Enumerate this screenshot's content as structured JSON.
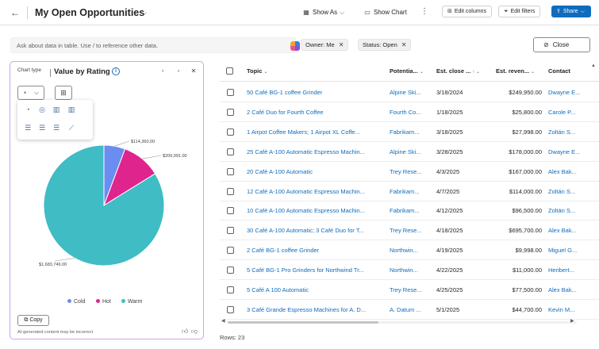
{
  "header": {
    "title": "My Open Opportunities",
    "show_as": "Show As",
    "show_chart": "Show Chart",
    "edit_columns": "Edit columns",
    "edit_filters": "Edit filters",
    "share": "Share"
  },
  "filterbar": {
    "ask_placeholder": "Ask about data in table. Use / to reference other data.",
    "chips": [
      "Owner: Me",
      "Status: Open"
    ],
    "close_label": "Close"
  },
  "chart_panel": {
    "tooltip": "Chart type",
    "title": "Value by Rating",
    "copy_label": "Copy",
    "ai_note": "AI-generated content may be incorrect",
    "accent_color": "#c8a6ef"
  },
  "chart_data": {
    "type": "pie",
    "title": "Value by Rating",
    "categories": [
      "Cold",
      "Hot",
      "Warm"
    ],
    "values": [
      114360,
      209991,
      1683746
    ],
    "value_labels": [
      "$114,360.00",
      "$209,991.00",
      "$1,683,746.00"
    ],
    "colors": [
      "#6b8cf0",
      "#e0248e",
      "#3fbcc4"
    ],
    "legend": "bottom"
  },
  "table": {
    "columns": [
      "Topic",
      "Potentia...",
      "Est. close ...",
      "Est. reven...",
      "Contact"
    ],
    "sort_indicators": [
      "⌄",
      "⌄",
      "↑ ⌄",
      "⌄",
      ""
    ],
    "rows": [
      [
        "50 Café BG-1 coffee Grinder",
        "Alpine Ski...",
        "3/18/2024",
        "$249,950.00",
        "Dwayne E..."
      ],
      [
        "2 Café Duo for Fourth Coffee",
        "Fourth Co...",
        "1/18/2025",
        "$25,800.00",
        "Carole P..."
      ],
      [
        "1 Airpot Coffee Makers; 1 Airpot XL Coffe...",
        "Fabrikam...",
        "3/18/2025",
        "$27,998.00",
        "Zoltán S..."
      ],
      [
        "25 Café A-100 Automatic Espresso Machin...",
        "Alpine Ski...",
        "3/28/2025",
        "$178,000.00",
        "Dwayne E..."
      ],
      [
        "20 Café A-100 Automatic",
        "Trey Rese...",
        "4/3/2025",
        "$167,000.00",
        "Alex Bak..."
      ],
      [
        "12 Café A-100 Automatic Espresso Machin...",
        "Fabrikam...",
        "4/7/2025",
        "$114,000.00",
        "Zoltán S..."
      ],
      [
        "10 Café A-100 Automatic Espresso Machin...",
        "Fabrikam...",
        "4/12/2025",
        "$96,500.00",
        "Zoltán S..."
      ],
      [
        "30 Café A-100 Automatic; 3 Café Duo for T...",
        "Trey Rese...",
        "4/18/2025",
        "$695,700.00",
        "Alex Bak..."
      ],
      [
        "2 Café BG-1 coffee Grinder",
        "Northwin...",
        "4/19/2025",
        "$9,998.00",
        "Miguel G..."
      ],
      [
        "5 Café BG-1 Pro Grinders for Northwind Tr...",
        "Northwin...",
        "4/22/2025",
        "$11,000.00",
        "Heribert..."
      ],
      [
        "5 Café A 100 Automatic",
        "Trey Rese...",
        "4/25/2025",
        "$77,500.00",
        "Alex Bak..."
      ],
      [
        "3 Café Grande Espresso Machines for A. D...",
        "A. Datum ...",
        "5/1/2025",
        "$44,700.00",
        "Kevin M..."
      ]
    ],
    "rows_label": "Rows: 23"
  }
}
